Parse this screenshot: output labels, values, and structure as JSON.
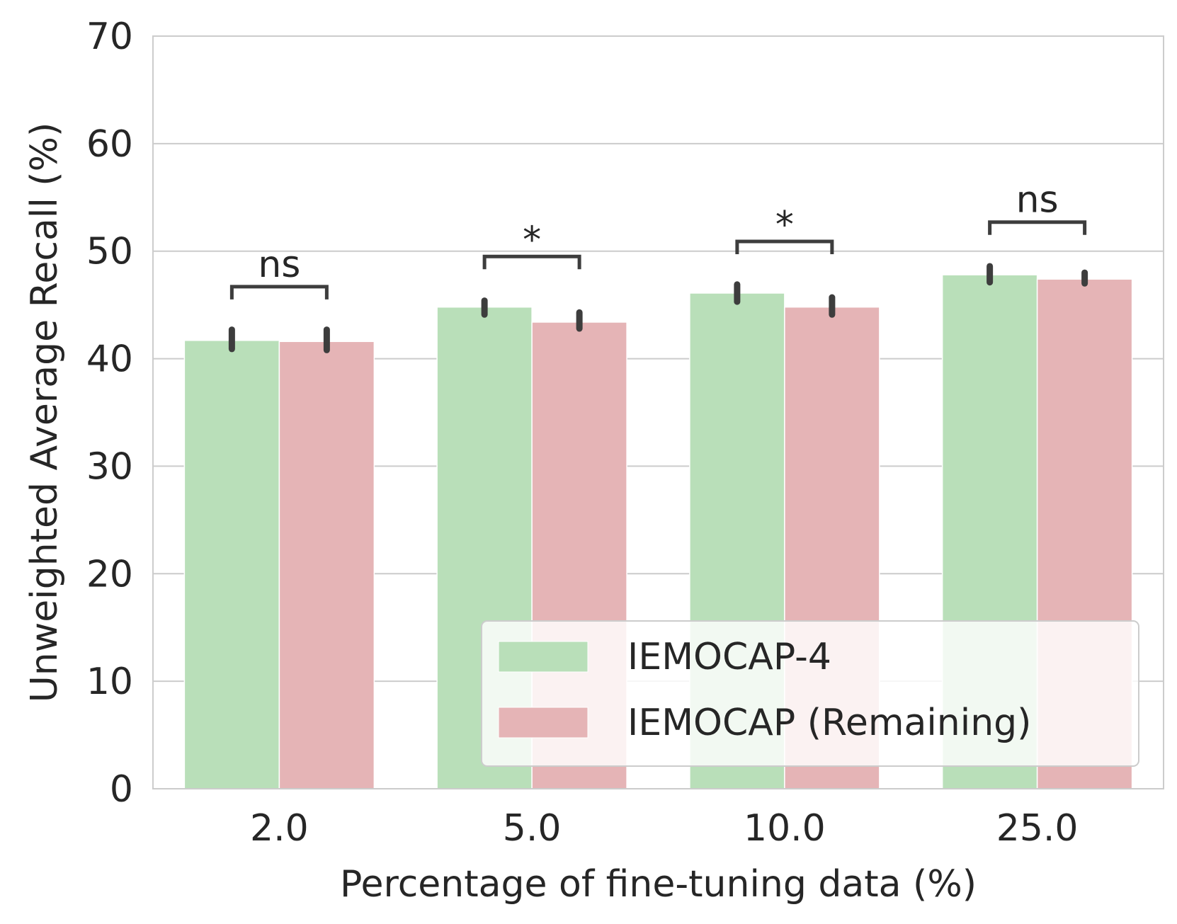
{
  "chart_data": {
    "type": "bar",
    "title": "",
    "xlabel": "Percentage of fine-tuning data (%)",
    "ylabel": "Unweighted Average Recall (%)",
    "categories": [
      "2.0",
      "5.0",
      "10.0",
      "25.0"
    ],
    "ylim": [
      0,
      70
    ],
    "yticks": [
      "0",
      "10",
      "20",
      "30",
      "40",
      "50",
      "60",
      "70"
    ],
    "grid": true,
    "legend_position": "lower-right",
    "series": [
      {
        "name": "IEMOCAP-4",
        "color": "#b9dfb9",
        "values": [
          41.7,
          44.8,
          46.1,
          47.8
        ],
        "err_low": [
          40.9,
          44.1,
          45.3,
          47.1
        ],
        "err_high": [
          42.7,
          45.4,
          46.9,
          48.6
        ]
      },
      {
        "name": "IEMOCAP (Remaining)",
        "color": "#e5b4b6",
        "values": [
          41.6,
          43.4,
          44.8,
          47.4
        ],
        "err_low": [
          40.8,
          42.8,
          44.1,
          47.0
        ],
        "err_high": [
          42.7,
          44.3,
          45.7,
          48.0
        ]
      }
    ],
    "significance": [
      {
        "category": "2.0",
        "label": "ns",
        "level": 46.7
      },
      {
        "category": "5.0",
        "label": "*",
        "level": 49.5
      },
      {
        "category": "10.0",
        "label": "*",
        "level": 50.9
      },
      {
        "category": "25.0",
        "label": "ns",
        "level": 52.7
      }
    ]
  }
}
